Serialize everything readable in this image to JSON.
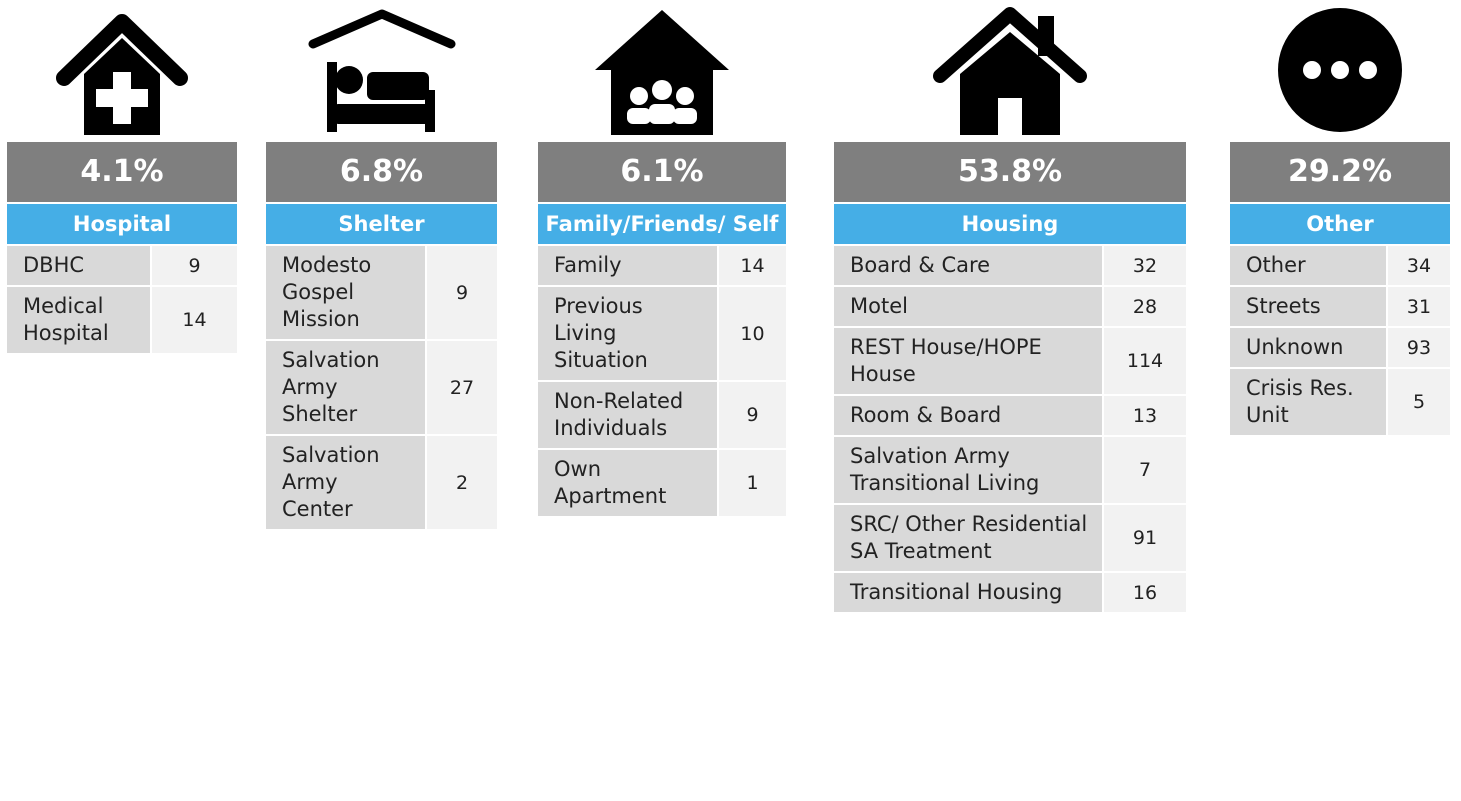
{
  "columns": [
    {
      "percent": "4.1%",
      "header": "Hospital",
      "rows": [
        [
          "DBHC",
          9
        ],
        [
          "Medical Hospital",
          14
        ]
      ]
    },
    {
      "percent": "6.8%",
      "header": "Shelter",
      "rows": [
        [
          "Modesto Gospel Mission",
          9
        ],
        [
          "Salvation Army Shelter",
          27
        ],
        [
          "Salvation Army Center",
          2
        ]
      ]
    },
    {
      "percent": "6.1%",
      "header": "Family/Friends/ Self",
      "rows": [
        [
          "Family",
          14
        ],
        [
          "Previous Living Situation",
          10
        ],
        [
          "Non-Related Individuals",
          9
        ],
        [
          "Own Apartment",
          1
        ]
      ]
    },
    {
      "percent": "53.8%",
      "header": "Housing",
      "rows": [
        [
          "Board & Care",
          32
        ],
        [
          "Motel",
          28
        ],
        [
          "REST House/HOPE House",
          114
        ],
        [
          "Room & Board",
          13
        ],
        [
          "Salvation Army Transitional Living",
          7
        ],
        [
          "SRC/ Other Residential SA Treatment",
          91
        ],
        [
          "Transitional Housing",
          16
        ]
      ]
    },
    {
      "percent": "29.2%",
      "header": "Other",
      "rows": [
        [
          "Other",
          34
        ],
        [
          "Streets",
          31
        ],
        [
          "Unknown",
          93
        ],
        [
          "Crisis Res. Unit",
          5
        ]
      ]
    }
  ]
}
